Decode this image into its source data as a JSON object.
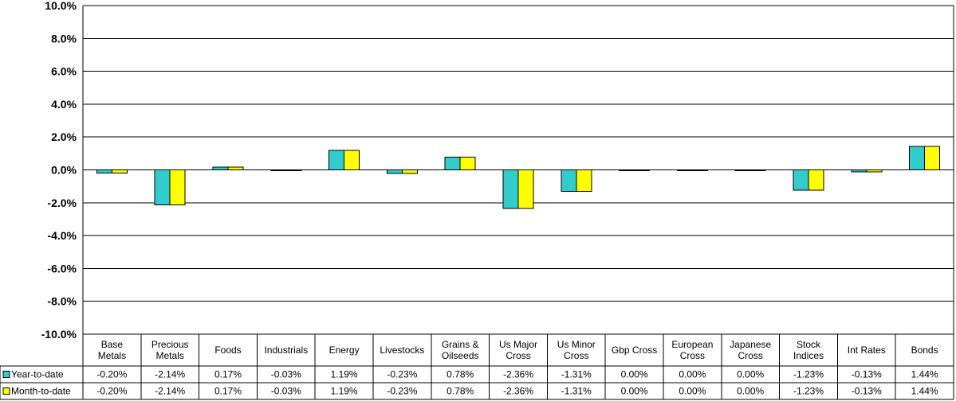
{
  "chart_data": {
    "type": "bar",
    "categories": [
      [
        "Base",
        "Metals"
      ],
      [
        "Precious",
        "Metals"
      ],
      [
        "Foods"
      ],
      [
        "Industrials"
      ],
      [
        "Energy"
      ],
      [
        "Livestocks"
      ],
      [
        "Grains &",
        "Oilseeds"
      ],
      [
        "Us Major",
        "Cross"
      ],
      [
        "Us Minor",
        "Cross"
      ],
      [
        "Gbp Cross"
      ],
      [
        "European",
        "Cross"
      ],
      [
        "Japanese",
        "Cross"
      ],
      [
        "Stock",
        "Indices"
      ],
      [
        "Int Rates"
      ],
      [
        "Bonds"
      ]
    ],
    "series": [
      {
        "name": "Year-to-date",
        "color": "#33cccc",
        "values": [
          -0.2,
          -2.14,
          0.17,
          -0.03,
          1.19,
          -0.23,
          0.78,
          -2.36,
          -1.31,
          0.0,
          0.0,
          0.0,
          -1.23,
          -0.13,
          1.44
        ],
        "labels": [
          "-0.20%",
          "-2.14%",
          "0.17%",
          "-0.03%",
          "1.19%",
          "-0.23%",
          "0.78%",
          "-2.36%",
          "-1.31%",
          "0.00%",
          "0.00%",
          "0.00%",
          "-1.23%",
          "-0.13%",
          "1.44%"
        ]
      },
      {
        "name": "Month-to-date",
        "color": "#ffff00",
        "values": [
          -0.2,
          -2.14,
          0.17,
          -0.03,
          1.19,
          -0.23,
          0.78,
          -2.36,
          -1.31,
          0.0,
          0.0,
          0.0,
          -1.23,
          -0.13,
          1.44
        ],
        "labels": [
          "-0.20%",
          "-2.14%",
          "0.17%",
          "-0.03%",
          "1.19%",
          "-0.23%",
          "0.78%",
          "-2.36%",
          "-1.31%",
          "0.00%",
          "0.00%",
          "0.00%",
          "-1.23%",
          "-0.13%",
          "1.44%"
        ]
      }
    ],
    "yticks": [
      10,
      8,
      6,
      4,
      2,
      0,
      -2,
      -4,
      -6,
      -8,
      -10
    ],
    "ytick_labels": [
      "10.0%",
      "8.0%",
      "6.0%",
      "4.0%",
      "2.0%",
      "0.0%",
      "-2.0%",
      "-4.0%",
      "-6.0%",
      "-8.0%",
      "-10.0%"
    ],
    "ylim": [
      -10,
      10
    ],
    "grid": true,
    "legend": "data-table",
    "title": "",
    "xlabel": "",
    "ylabel": ""
  }
}
